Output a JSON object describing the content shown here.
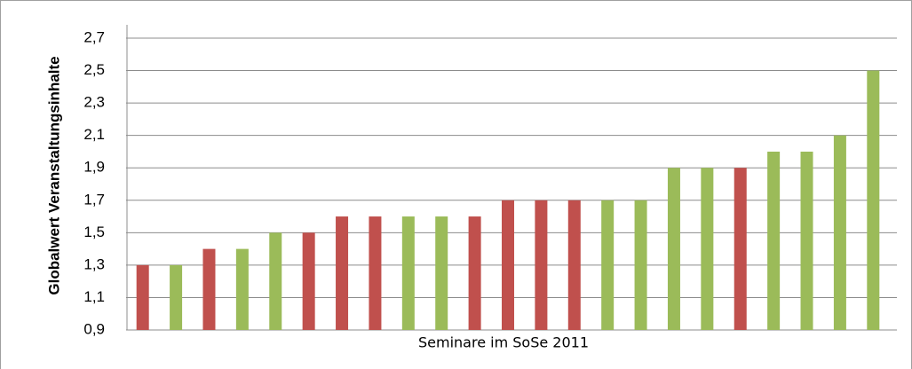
{
  "chart_data": {
    "type": "bar",
    "y_label": "Globalwert Veranstaltungsinhalte",
    "x_label": "Seminare im SoSe 2011",
    "categories": [
      null,
      null,
      null,
      null,
      null,
      null,
      null,
      null,
      null,
      null,
      null,
      null,
      null,
      null,
      null,
      null,
      null,
      null,
      null,
      null,
      null,
      null,
      null
    ],
    "values": [
      1.3,
      1.3,
      1.4,
      1.4,
      1.5,
      1.5,
      1.6,
      1.6,
      1.6,
      1.6,
      1.6,
      1.7,
      1.7,
      1.7,
      1.7,
      1.7,
      1.9,
      1.9,
      1.9,
      2.0,
      2.0,
      2.1,
      2.5
    ],
    "colors": [
      "#c0504d",
      "#9bbb59",
      "#c0504d",
      "#9bbb59",
      "#9bbb59",
      "#c0504d",
      "#c0504d",
      "#c0504d",
      "#9bbb59",
      "#9bbb59",
      "#c0504d",
      "#c0504d",
      "#c0504d",
      "#c0504d",
      "#9bbb59",
      "#9bbb59",
      "#9bbb59",
      "#9bbb59",
      "#c0504d",
      "#9bbb59",
      "#9bbb59",
      "#9bbb59",
      "#9bbb59"
    ],
    "ylim": [
      0.9,
      2.7
    ],
    "yticks": [
      {
        "value": 0.9,
        "label": "0,9"
      },
      {
        "value": 1.1,
        "label": "1,1"
      },
      {
        "value": 1.3,
        "label": "1,3"
      },
      {
        "value": 1.5,
        "label": "1,5"
      },
      {
        "value": 1.7,
        "label": "1,7"
      },
      {
        "value": 1.9,
        "label": "1,9"
      },
      {
        "value": 2.1,
        "label": "2,1"
      },
      {
        "value": 2.3,
        "label": "2,3"
      },
      {
        "value": 2.5,
        "label": "2,5"
      },
      {
        "value": 2.7,
        "label": "2,7"
      }
    ],
    "grid": true
  }
}
